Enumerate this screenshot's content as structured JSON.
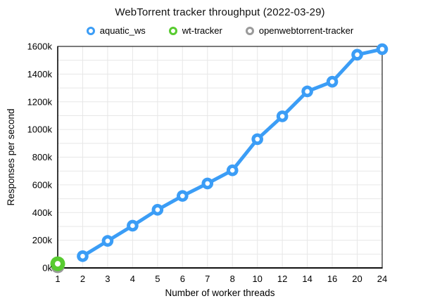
{
  "title": "WebTorrent tracker throughput (2022-03-29)",
  "legend": [
    {
      "label": "aquatic_ws",
      "color": "#3b9df6",
      "marker": "ring-icon"
    },
    {
      "label": "wt-tracker",
      "color": "#58cb30",
      "marker": "ring-icon"
    },
    {
      "label": "openwebtorrent-tracker",
      "color": "#9a9a9a",
      "marker": "ring-icon"
    }
  ],
  "chart_data": {
    "type": "line",
    "title": "WebTorrent tracker throughput (2022-03-29)",
    "xlabel": "Number of worker threads",
    "ylabel": "Responses per second",
    "categories": [
      "1",
      "2",
      "3",
      "4",
      "5",
      "6",
      "7",
      "8",
      "10",
      "12",
      "14",
      "16",
      "20",
      "24"
    ],
    "ylim": [
      0,
      1600000
    ],
    "y_major_ticks": [
      0,
      200000,
      400000,
      600000,
      800000,
      1000000,
      1200000,
      1400000,
      1600000
    ],
    "y_tick_labels": [
      "0k",
      "200k",
      "400k",
      "600k",
      "800k",
      "1000k",
      "1200k",
      "1400k",
      "1600k"
    ],
    "y_minor_step": 100000,
    "grid": true,
    "legend_position": "top",
    "series": [
      {
        "name": "aquatic_ws",
        "color": "#3b9df6",
        "values": [
          null,
          85000,
          195000,
          305000,
          420000,
          520000,
          610000,
          705000,
          930000,
          1095000,
          1275000,
          1345000,
          1540000,
          1580000
        ]
      },
      {
        "name": "wt-tracker",
        "color": "#58cb30",
        "values": [
          30000,
          null,
          null,
          null,
          null,
          null,
          null,
          null,
          null,
          null,
          null,
          null,
          null,
          null
        ]
      },
      {
        "name": "openwebtorrent-tracker",
        "color": "#9a9a9a",
        "values": [
          10000,
          null,
          null,
          null,
          null,
          null,
          null,
          null,
          null,
          null,
          null,
          null,
          null,
          null
        ]
      }
    ]
  }
}
